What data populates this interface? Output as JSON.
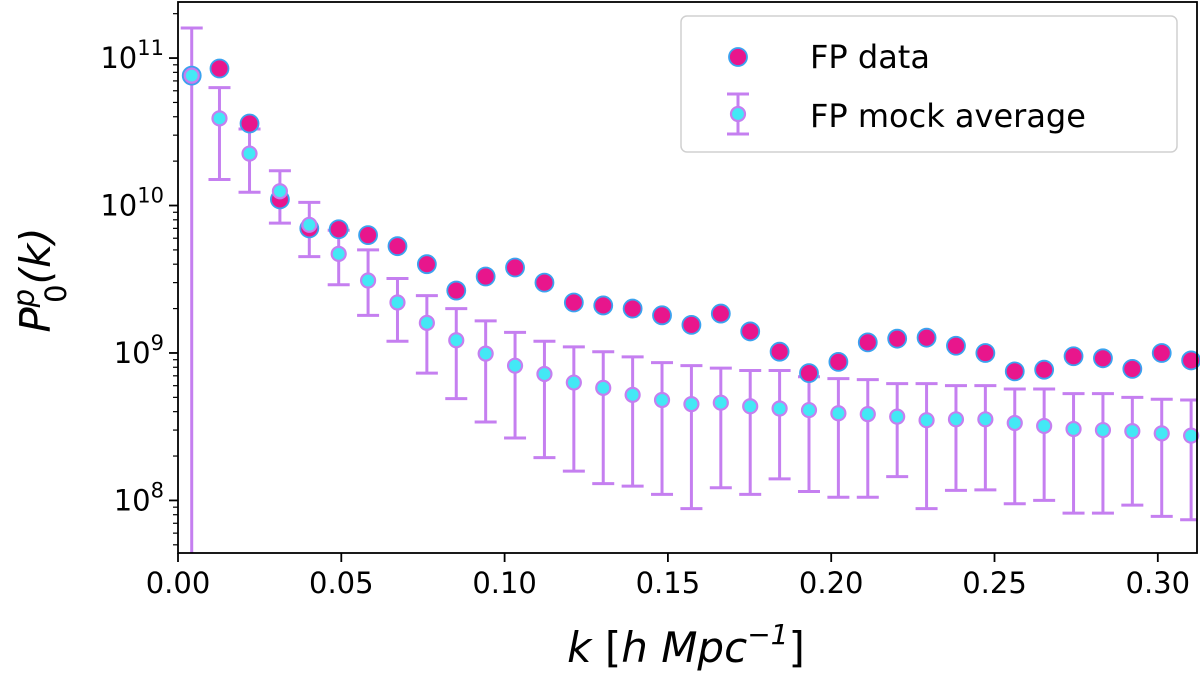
{
  "chart_data": {
    "type": "scatter",
    "xlabel": {
      "var": "k",
      "unit_open": " [",
      "h": "h",
      "unit": " Mpc",
      "exp": "−1",
      "unit_close": "]"
    },
    "ylabel": {
      "base": "P",
      "sup": "p",
      "sub": "0",
      "arg": "(k)"
    },
    "xlim": [
      0.0,
      0.312
    ],
    "ylim": [
      44000000.0,
      240000000000.0
    ],
    "yscale": "log",
    "x_ticks": [
      0.0,
      0.05,
      0.1,
      0.15,
      0.2,
      0.25,
      0.3
    ],
    "x_tick_labels": [
      "0.00",
      "0.05",
      "0.10",
      "0.15",
      "0.20",
      "0.25",
      "0.30"
    ],
    "y_ticks": [
      {
        "value": 100000000.0,
        "base": "10",
        "exp": "8"
      },
      {
        "value": 1000000000.0,
        "base": "10",
        "exp": "9"
      },
      {
        "value": 10000000000.0,
        "base": "10",
        "exp": "10"
      },
      {
        "value": 100000000000.0,
        "base": "10",
        "exp": "11"
      }
    ],
    "legend_position": "top-right",
    "series": [
      {
        "name": "FP data",
        "fill": "#e8168c",
        "edge": "#3aa3f0",
        "x": [
          0.0042,
          0.0127,
          0.0219,
          0.0312,
          0.0402,
          0.0492,
          0.0582,
          0.0672,
          0.0762,
          0.0852,
          0.0942,
          0.1032,
          0.1122,
          0.1212,
          0.1302,
          0.1392,
          0.1482,
          0.1572,
          0.1662,
          0.1752,
          0.1842,
          0.1932,
          0.2022,
          0.2112,
          0.2202,
          0.2292,
          0.2382,
          0.2472,
          0.2562,
          0.2652,
          0.2742,
          0.2832,
          0.2922,
          0.3012,
          0.3102
        ],
        "y": [
          76000000000.0,
          85000000000.0,
          36000000000.0,
          11000000000.0,
          7000000000.0,
          6900000000.0,
          6300000000.0,
          5300000000.0,
          4000000000.0,
          2650000000.0,
          3300000000.0,
          3800000000.0,
          3000000000.0,
          2200000000.0,
          2100000000.0,
          2000000000.0,
          1800000000.0,
          1550000000.0,
          1850000000.0,
          1400000000.0,
          1020000000.0,
          730000000.0,
          870000000.0,
          1180000000.0,
          1250000000.0,
          1270000000.0,
          1120000000.0,
          1000000000.0,
          750000000.0,
          770000000.0,
          950000000.0,
          920000000.0,
          780000000.0,
          1000000000.0,
          890000000.0
        ]
      },
      {
        "name": "FP mock average",
        "fill": "#43e8f5",
        "edge": "#c57ff0",
        "errcolor": "#c57ff0",
        "x": [
          0.0042,
          0.0127,
          0.0219,
          0.0312,
          0.0402,
          0.0492,
          0.0582,
          0.0672,
          0.0762,
          0.0852,
          0.0942,
          0.1032,
          0.1122,
          0.1212,
          0.1302,
          0.1392,
          0.1482,
          0.1572,
          0.1662,
          0.1752,
          0.1842,
          0.1932,
          0.2022,
          0.2112,
          0.2202,
          0.2292,
          0.2382,
          0.2472,
          0.2562,
          0.2652,
          0.2742,
          0.2832,
          0.2922,
          0.3012,
          0.3102
        ],
        "y": [
          76000000000.0,
          39000000000.0,
          22500000000.0,
          12500000000.0,
          7400000000.0,
          4700000000.0,
          3100000000.0,
          2200000000.0,
          1600000000.0,
          1220000000.0,
          990000000.0,
          820000000.0,
          720000000.0,
          630000000.0,
          580000000.0,
          520000000.0,
          480000000.0,
          450000000.0,
          460000000.0,
          435000000.0,
          420000000.0,
          410000000.0,
          390000000.0,
          385000000.0,
          370000000.0,
          350000000.0,
          355000000.0,
          355000000.0,
          335000000.0,
          320000000.0,
          305000000.0,
          300000000.0,
          295000000.0,
          285000000.0,
          275000000.0
        ],
        "err_low": [
          44000000.0,
          15000000000.0,
          12300000000.0,
          7600000000.0,
          4500000000.0,
          2900000000.0,
          1800000000.0,
          1200000000.0,
          730000000.0,
          490000000.0,
          340000000.0,
          265000000.0,
          195000000.0,
          158000000.0,
          130000000.0,
          125000000.0,
          110000000.0,
          88000000.0,
          122000000.0,
          110000000.0,
          140000000.0,
          115000000.0,
          105000000.0,
          105000000.0,
          145000000.0,
          88000000.0,
          117000000.0,
          118000000.0,
          95000000.0,
          100000000.0,
          82000000.0,
          82000000.0,
          93000000.0,
          78000000.0,
          74000000.0
        ],
        "err_high": [
          160000000000.0,
          63000000000.0,
          33000000000.0,
          17200000000.0,
          10500000000.0,
          6800000000.0,
          5000000000.0,
          3200000000.0,
          2450000000.0,
          2000000000.0,
          1650000000.0,
          1380000000.0,
          1200000000.0,
          1100000000.0,
          1020000000.0,
          940000000.0,
          860000000.0,
          820000000.0,
          790000000.0,
          760000000.0,
          760000000.0,
          690000000.0,
          670000000.0,
          660000000.0,
          620000000.0,
          620000000.0,
          600000000.0,
          600000000.0,
          570000000.0,
          570000000.0,
          530000000.0,
          530000000.0,
          500000000.0,
          485000000.0,
          480000000.0
        ]
      }
    ]
  }
}
